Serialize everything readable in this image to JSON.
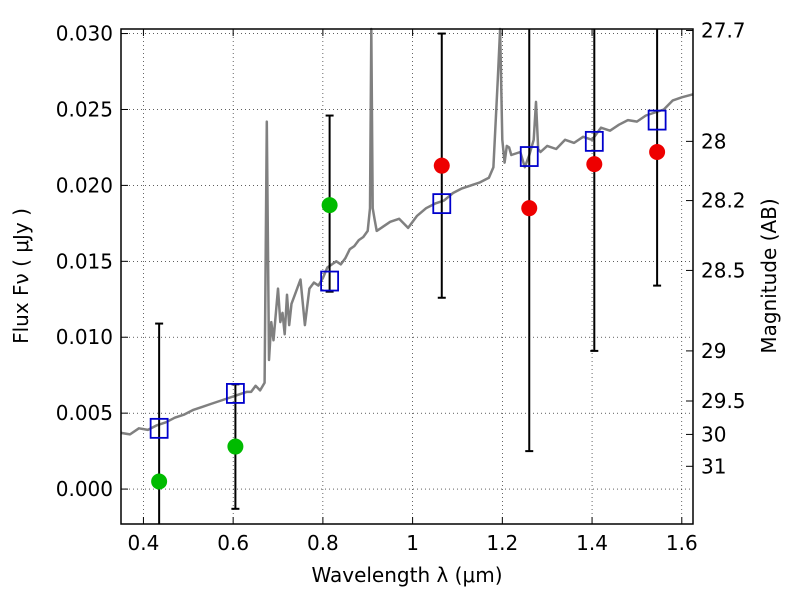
{
  "chart_data": {
    "type": "scatter",
    "xlabel": "Wavelength  λ (μm)",
    "ylabel": "Flux  Fν  ( μJy )",
    "ylabel_right": "Magnitude (AB)",
    "xlim": [
      0.35,
      1.625
    ],
    "ylim": [
      -0.0023,
      0.0303
    ],
    "x_ticks": [
      0.4,
      0.6,
      0.8,
      1.0,
      1.2,
      1.4,
      1.6
    ],
    "x_tick_labels": [
      "0.4",
      "0.6",
      "0.8",
      "1",
      "1.2",
      "1.4",
      "1.6"
    ],
    "y_ticks": [
      0.0,
      0.005,
      0.01,
      0.015,
      0.02,
      0.025,
      0.03
    ],
    "y_tick_labels": [
      "0.000",
      "0.005",
      "0.010",
      "0.015",
      "0.020",
      "0.025",
      "0.030"
    ],
    "right_ticks": [
      {
        "label": "27.7",
        "flux": 0.0302
      },
      {
        "label": "28",
        "flux": 0.0229
      },
      {
        "label": "28.2",
        "flux": 0.019
      },
      {
        "label": "28.5",
        "flux": 0.0144
      },
      {
        "label": "29",
        "flux": 0.0091
      },
      {
        "label": "29.5",
        "flux": 0.0058
      },
      {
        "label": "30",
        "flux": 0.0036
      },
      {
        "label": "31",
        "flux": 0.0015
      }
    ],
    "grid": true,
    "colors": {
      "spectrum": "#808080",
      "model": "#0000cc",
      "red": "#ee0000",
      "green": "#00bb00",
      "errorbar": "#000000"
    },
    "series": [
      {
        "kind": "spectrum",
        "x": [
          0.35,
          0.37,
          0.39,
          0.41,
          0.43,
          0.45,
          0.47,
          0.49,
          0.51,
          0.53,
          0.55,
          0.57,
          0.59,
          0.61,
          0.63,
          0.64,
          0.65,
          0.66,
          0.67,
          0.675,
          0.68,
          0.685,
          0.69,
          0.7,
          0.705,
          0.71,
          0.715,
          0.72,
          0.725,
          0.73,
          0.74,
          0.75,
          0.76,
          0.77,
          0.78,
          0.79,
          0.8,
          0.81,
          0.82,
          0.83,
          0.84,
          0.85,
          0.86,
          0.87,
          0.88,
          0.89,
          0.9,
          0.905,
          0.908,
          0.911,
          0.915,
          0.92,
          0.93,
          0.95,
          0.97,
          0.99,
          1.01,
          1.03,
          1.05,
          1.07,
          1.09,
          1.11,
          1.13,
          1.15,
          1.17,
          1.18,
          1.19,
          1.195,
          1.2,
          1.205,
          1.21,
          1.215,
          1.22,
          1.24,
          1.25,
          1.26,
          1.27,
          1.275,
          1.28,
          1.285,
          1.3,
          1.32,
          1.34,
          1.36,
          1.38,
          1.4,
          1.42,
          1.44,
          1.46,
          1.48,
          1.5,
          1.52,
          1.54,
          1.56,
          1.58,
          1.6,
          1.625
        ],
        "y": [
          0.0037,
          0.0036,
          0.004,
          0.0039,
          0.0042,
          0.0044,
          0.0047,
          0.0049,
          0.0052,
          0.0054,
          0.0056,
          0.0058,
          0.006,
          0.0062,
          0.0064,
          0.0064,
          0.0068,
          0.0065,
          0.007,
          0.0242,
          0.0085,
          0.011,
          0.0098,
          0.0132,
          0.011,
          0.0116,
          0.0102,
          0.0128,
          0.0108,
          0.0122,
          0.013,
          0.0138,
          0.0108,
          0.0132,
          0.0136,
          0.0134,
          0.0139,
          0.0146,
          0.0148,
          0.015,
          0.0148,
          0.0152,
          0.0158,
          0.016,
          0.0164,
          0.0166,
          0.017,
          0.0185,
          0.032,
          0.0185,
          0.0178,
          0.017,
          0.0172,
          0.0176,
          0.0178,
          0.0172,
          0.018,
          0.0185,
          0.0188,
          0.019,
          0.0195,
          0.0198,
          0.02,
          0.0202,
          0.0205,
          0.0212,
          0.027,
          0.032,
          0.023,
          0.0215,
          0.0226,
          0.0225,
          0.022,
          0.0222,
          0.0212,
          0.022,
          0.023,
          0.0255,
          0.0224,
          0.0222,
          0.0226,
          0.0224,
          0.023,
          0.0228,
          0.0232,
          0.023,
          0.0238,
          0.0236,
          0.024,
          0.0243,
          0.0242,
          0.0246,
          0.0248,
          0.025,
          0.0256,
          0.0258,
          0.026
        ]
      },
      {
        "kind": "model",
        "x": [
          0.435,
          0.605,
          0.815,
          1.065,
          1.26,
          1.405,
          1.545
        ],
        "y": [
          0.004,
          0.0063,
          0.0137,
          0.0188,
          0.0219,
          0.0229,
          0.0243
        ]
      },
      {
        "kind": "observed-red",
        "x": [
          1.065,
          1.26,
          1.405,
          1.545
        ],
        "y": [
          0.0213,
          0.0185,
          0.0214,
          0.0222
        ],
        "err_low": [
          0.0126,
          0.0025,
          0.0091,
          0.0134
        ],
        "err_high": [
          0.03,
          0.031,
          0.031,
          0.031
        ]
      },
      {
        "kind": "observed-green",
        "x": [
          0.435,
          0.605,
          0.815
        ],
        "y": [
          0.0005,
          0.0028,
          0.0187
        ],
        "err_low": [
          -0.0025,
          -0.0013,
          0.013
        ],
        "err_high": [
          0.0109,
          0.0069,
          0.0246
        ]
      }
    ]
  }
}
